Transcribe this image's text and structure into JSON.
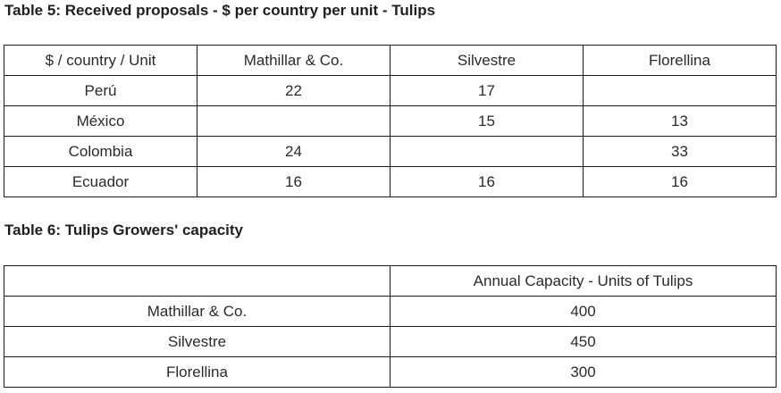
{
  "table5": {
    "caption": "Table 5: Received proposals - $ per country per unit - Tulips",
    "header": [
      "$ / country / Unit",
      "Mathillar & Co.",
      "Silvestre",
      "Florellina"
    ],
    "rows": [
      [
        "Perú",
        "22",
        "17",
        ""
      ],
      [
        "México",
        "",
        "15",
        "13"
      ],
      [
        "Colombia",
        "24",
        "",
        "33"
      ],
      [
        "Ecuador",
        "16",
        "16",
        "16"
      ]
    ]
  },
  "table6": {
    "caption": "Table 6: Tulips Growers' capacity",
    "header": [
      "",
      "Annual Capacity - Units of Tulips"
    ],
    "rows": [
      [
        "Mathillar & Co.",
        "400"
      ],
      [
        "Silvestre",
        "450"
      ],
      [
        "Florellina",
        "300"
      ]
    ]
  }
}
